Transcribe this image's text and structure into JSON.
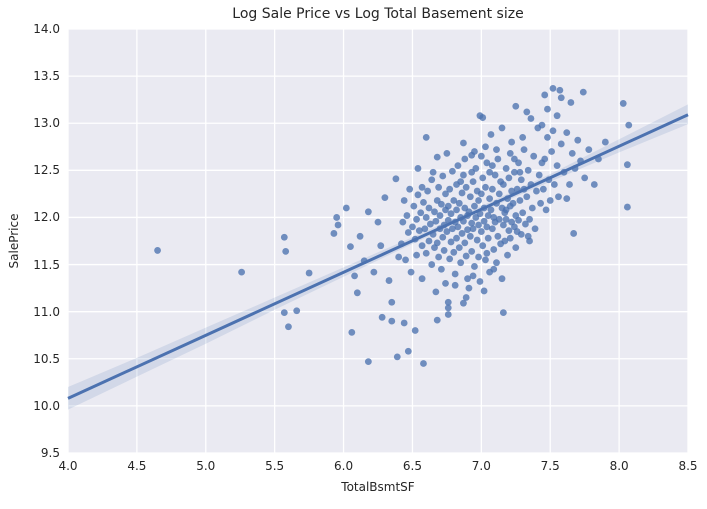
{
  "figure": {
    "title": "Log Sale Price vs Log Total Basement size",
    "x_axis_label": "TotalBsmtSF",
    "y_axis_label": "SalePrice"
  },
  "style": {
    "figure_bg": "#ffffff",
    "axes_bg": "#eaeaf2",
    "grid_color": "#ffffff",
    "point_color": "#4c72b0",
    "point_opacity": 0.78,
    "point_radius": 3.4,
    "line_color": "#4c72b0",
    "line_width": 3,
    "band_color": "#4c72b0",
    "band_opacity": 0.15,
    "text_color": "#262626"
  },
  "chart_data": {
    "type": "scatter",
    "title": "Log Sale Price vs Log Total Basement size",
    "xlabel": "TotalBsmtSF",
    "ylabel": "SalePrice",
    "xlim": [
      4.0,
      8.5
    ],
    "ylim": [
      9.5,
      14.0
    ],
    "x_ticks": [
      "4.0",
      "4.5",
      "5.0",
      "5.5",
      "6.0",
      "6.5",
      "7.0",
      "7.5",
      "8.0",
      "8.5"
    ],
    "y_ticks": [
      "9.5",
      "10.0",
      "10.5",
      "11.0",
      "11.5",
      "12.0",
      "12.5",
      "13.0",
      "13.5",
      "14.0"
    ],
    "grid": true,
    "legend": false,
    "regression_line": {
      "x": [
        4.0,
        8.5
      ],
      "y": [
        10.08,
        13.09
      ],
      "slope": 0.669,
      "intercept": 7.404
    },
    "confidence_band": {
      "x": [
        4.0,
        4.5,
        5.0,
        5.5,
        6.0,
        6.5,
        7.0,
        7.5,
        8.0,
        8.5
      ],
      "upper": [
        10.2,
        10.51,
        10.83,
        11.15,
        11.47,
        11.79,
        12.12,
        12.46,
        12.83,
        13.2
      ],
      "lower": [
        9.96,
        10.31,
        10.66,
        11.02,
        11.37,
        11.72,
        12.06,
        12.38,
        12.69,
        12.99
      ]
    },
    "points": [
      [
        4.65,
        11.65
      ],
      [
        5.26,
        11.42
      ],
      [
        5.57,
        11.79
      ],
      [
        5.58,
        11.64
      ],
      [
        5.75,
        11.41
      ],
      [
        5.57,
        10.99
      ],
      [
        5.66,
        11.01
      ],
      [
        5.6,
        10.84
      ],
      [
        6.18,
        10.47
      ],
      [
        6.39,
        10.52
      ],
      [
        6.47,
        10.58
      ],
      [
        6.58,
        10.45
      ],
      [
        8.03,
        13.21
      ],
      [
        8.07,
        12.98
      ],
      [
        8.06,
        12.56
      ],
      [
        8.06,
        12.11
      ],
      [
        7.67,
        11.83
      ],
      [
        6.67,
        11.21
      ],
      [
        6.76,
        11.1
      ],
      [
        6.76,
        11.04
      ],
      [
        6.87,
        11.09
      ],
      [
        6.76,
        10.97
      ],
      [
        6.68,
        10.91
      ],
      [
        7.16,
        10.99
      ],
      [
        6.6,
        12.85
      ],
      [
        6.68,
        12.64
      ],
      [
        6.75,
        12.68
      ],
      [
        6.87,
        12.79
      ],
      [
        6.93,
        12.66
      ],
      [
        6.54,
        12.52
      ],
      [
        6.65,
        12.48
      ],
      [
        6.38,
        12.41
      ],
      [
        6.57,
        12.32
      ],
      [
        6.99,
        13.08
      ],
      [
        7.57,
        13.35
      ],
      [
        7.46,
        13.3
      ],
      [
        7.52,
        13.37
      ],
      [
        7.74,
        13.33
      ],
      [
        7.58,
        13.27
      ],
      [
        7.01,
        13.06
      ],
      [
        5.93,
        11.83
      ],
      [
        5.96,
        11.92
      ],
      [
        5.95,
        12.0
      ],
      [
        6.02,
        12.1
      ],
      [
        6.05,
        11.69
      ],
      [
        6.08,
        11.38
      ],
      [
        6.12,
        11.8
      ],
      [
        6.15,
        11.54
      ],
      [
        6.1,
        11.2
      ],
      [
        6.22,
        11.42
      ],
      [
        6.27,
        11.7
      ],
      [
        6.25,
        11.95
      ],
      [
        6.3,
        12.21
      ],
      [
        6.18,
        12.06
      ],
      [
        6.35,
        11.1
      ],
      [
        6.28,
        10.94
      ],
      [
        6.33,
        11.33
      ],
      [
        6.4,
        11.58
      ],
      [
        6.06,
        10.78
      ],
      [
        6.52,
        10.8
      ],
      [
        6.35,
        10.9
      ],
      [
        6.44,
        10.88
      ],
      [
        6.42,
        11.72
      ],
      [
        6.43,
        11.95
      ],
      [
        6.44,
        12.18
      ],
      [
        6.45,
        11.55
      ],
      [
        6.46,
        12.02
      ],
      [
        6.47,
        11.84
      ],
      [
        6.48,
        12.3
      ],
      [
        6.49,
        11.42
      ],
      [
        6.5,
        11.9
      ],
      [
        6.51,
        12.12
      ],
      [
        6.52,
        11.77
      ],
      [
        6.53,
        11.98
      ],
      [
        6.53,
        11.6
      ],
      [
        6.54,
        12.24
      ],
      [
        6.55,
        11.86
      ],
      [
        6.56,
        12.05
      ],
      [
        6.57,
        11.7
      ],
      [
        6.57,
        11.35
      ],
      [
        6.58,
        12.16
      ],
      [
        6.59,
        11.88
      ],
      [
        6.6,
        12.0
      ],
      [
        6.6,
        11.62
      ],
      [
        6.61,
        12.28
      ],
      [
        6.62,
        11.75
      ],
      [
        6.62,
        12.1
      ],
      [
        6.63,
        11.93
      ],
      [
        6.64,
        11.5
      ],
      [
        6.64,
        12.4
      ],
      [
        6.65,
        11.82
      ],
      [
        6.66,
        12.06
      ],
      [
        6.66,
        11.68
      ],
      [
        6.67,
        11.96
      ],
      [
        6.68,
        12.18
      ],
      [
        6.68,
        11.73
      ],
      [
        6.69,
        11.58
      ],
      [
        6.69,
        12.32
      ],
      [
        6.7,
        11.88
      ],
      [
        6.7,
        12.02
      ],
      [
        6.71,
        11.45
      ],
      [
        6.71,
        12.14
      ],
      [
        6.72,
        11.79
      ],
      [
        6.72,
        12.44
      ],
      [
        6.73,
        11.92
      ],
      [
        6.73,
        11.65
      ],
      [
        6.74,
        12.08
      ],
      [
        6.74,
        11.3
      ],
      [
        6.74,
        12.25
      ],
      [
        6.75,
        11.85
      ],
      [
        6.76,
        12.12
      ],
      [
        6.76,
        11.97
      ],
      [
        6.77,
        11.56
      ],
      [
        6.77,
        12.3
      ],
      [
        6.78,
        11.74
      ],
      [
        6.78,
        12.04
      ],
      [
        6.79,
        11.88
      ],
      [
        6.79,
        12.49
      ],
      [
        6.8,
        11.63
      ],
      [
        6.8,
        12.18
      ],
      [
        6.81,
        11.95
      ],
      [
        6.81,
        11.4
      ],
      [
        6.82,
        12.08
      ],
      [
        6.82,
        11.78
      ],
      [
        6.82,
        12.35
      ],
      [
        6.83,
        11.9
      ],
      [
        6.84,
        12.15
      ],
      [
        6.84,
        11.68
      ],
      [
        6.85,
        12.0
      ],
      [
        6.85,
        11.52
      ],
      [
        6.86,
        12.26
      ],
      [
        6.86,
        11.83
      ],
      [
        6.87,
        12.45
      ],
      [
        6.87,
        11.96
      ],
      [
        6.88,
        11.73
      ],
      [
        6.88,
        12.1
      ],
      [
        6.89,
        11.59
      ],
      [
        6.89,
        12.32
      ],
      [
        6.9,
        11.87
      ],
      [
        6.9,
        12.02
      ],
      [
        6.9,
        11.35
      ],
      [
        6.83,
        12.55
      ],
      [
        6.88,
        12.62
      ],
      [
        6.91,
        12.06
      ],
      [
        6.92,
        11.8
      ],
      [
        6.92,
        12.22
      ],
      [
        6.93,
        11.94
      ],
      [
        6.93,
        11.64
      ],
      [
        6.94,
        12.38
      ],
      [
        6.94,
        11.88
      ],
      [
        6.95,
        12.12
      ],
      [
        6.95,
        11.48
      ],
      [
        6.96,
        12.0
      ],
      [
        6.96,
        12.52
      ],
      [
        6.97,
        11.76
      ],
      [
        6.97,
        12.28
      ],
      [
        6.98,
        11.92
      ],
      [
        6.98,
        11.58
      ],
      [
        6.91,
        11.25
      ],
      [
        6.95,
        12.7
      ],
      [
        6.98,
        12.18
      ],
      [
        6.99,
        12.04
      ],
      [
        7.0,
        11.85
      ],
      [
        7.0,
        12.25
      ],
      [
        7.01,
        11.7
      ],
      [
        7.01,
        12.42
      ],
      [
        7.02,
        11.96
      ],
      [
        7.02,
        12.1
      ],
      [
        7.03,
        11.55
      ],
      [
        7.03,
        12.32
      ],
      [
        7.04,
        11.9
      ],
      [
        7.04,
        12.58
      ],
      [
        7.05,
        12.02
      ],
      [
        7.05,
        11.78
      ],
      [
        7.06,
        12.2
      ],
      [
        7.06,
        11.42
      ],
      [
        6.99,
        11.32
      ],
      [
        7.03,
        12.75
      ],
      [
        7.06,
        12.48
      ],
      [
        7.07,
        12.08
      ],
      [
        7.08,
        11.88
      ],
      [
        7.08,
        12.3
      ],
      [
        7.09,
        12.0
      ],
      [
        7.09,
        11.66
      ],
      [
        7.1,
        12.45
      ],
      [
        7.1,
        11.95
      ],
      [
        7.11,
        12.15
      ],
      [
        7.11,
        11.52
      ],
      [
        7.12,
        12.62
      ],
      [
        7.12,
        11.8
      ],
      [
        7.13,
        12.25
      ],
      [
        7.13,
        11.98
      ],
      [
        7.14,
        12.38
      ],
      [
        7.14,
        11.72
      ],
      [
        7.07,
        12.88
      ],
      [
        7.15,
        12.1
      ],
      [
        7.16,
        11.92
      ],
      [
        7.16,
        12.35
      ],
      [
        7.17,
        12.05
      ],
      [
        7.17,
        11.75
      ],
      [
        7.18,
        12.52
      ],
      [
        7.18,
        11.98
      ],
      [
        7.19,
        12.2
      ],
      [
        7.19,
        11.6
      ],
      [
        7.2,
        12.42
      ],
      [
        7.2,
        11.86
      ],
      [
        7.21,
        12.12
      ],
      [
        7.21,
        12.68
      ],
      [
        7.22,
        11.95
      ],
      [
        7.22,
        12.28
      ],
      [
        7.23,
        12.15
      ],
      [
        7.24,
        11.9
      ],
      [
        7.24,
        12.48
      ],
      [
        7.25,
        12.02
      ],
      [
        7.25,
        11.68
      ],
      [
        7.26,
        12.3
      ],
      [
        7.27,
        12.58
      ],
      [
        7.27,
        11.97
      ],
      [
        7.28,
        12.18
      ],
      [
        7.29,
        11.82
      ],
      [
        7.29,
        12.4
      ],
      [
        7.3,
        12.05
      ],
      [
        7.31,
        12.72
      ],
      [
        7.32,
        11.93
      ],
      [
        7.33,
        12.22
      ],
      [
        7.34,
        12.5
      ],
      [
        7.35,
        11.98
      ],
      [
        7.36,
        12.35
      ],
      [
        7.37,
        12.1
      ],
      [
        7.38,
        12.65
      ],
      [
        7.39,
        11.88
      ],
      [
        7.4,
        12.28
      ],
      [
        7.41,
        12.95
      ],
      [
        7.42,
        12.45
      ],
      [
        7.43,
        12.15
      ],
      [
        7.44,
        12.58
      ],
      [
        7.35,
        11.75
      ],
      [
        7.45,
        12.3
      ],
      [
        7.46,
        12.62
      ],
      [
        7.47,
        12.08
      ],
      [
        7.48,
        12.85
      ],
      [
        7.49,
        12.4
      ],
      [
        7.5,
        12.18
      ],
      [
        7.51,
        12.7
      ],
      [
        7.52,
        12.92
      ],
      [
        7.53,
        12.35
      ],
      [
        7.55,
        12.55
      ],
      [
        7.56,
        12.22
      ],
      [
        7.58,
        12.78
      ],
      [
        7.6,
        12.48
      ],
      [
        7.62,
        12.9
      ],
      [
        7.64,
        12.35
      ],
      [
        7.66,
        12.68
      ],
      [
        7.68,
        12.52
      ],
      [
        7.7,
        12.82
      ],
      [
        7.72,
        12.6
      ],
      [
        7.75,
        12.42
      ],
      [
        7.78,
        12.72
      ],
      [
        7.62,
        12.2
      ],
      [
        7.36,
        13.05
      ],
      [
        7.44,
        12.98
      ],
      [
        7.3,
        12.85
      ],
      [
        7.22,
        12.8
      ],
      [
        7.15,
        12.95
      ],
      [
        7.48,
        13.15
      ],
      [
        7.55,
        13.08
      ],
      [
        7.65,
        13.22
      ],
      [
        7.25,
        13.18
      ],
      [
        7.33,
        13.12
      ],
      [
        7.85,
        12.62
      ],
      [
        7.9,
        12.8
      ],
      [
        7.82,
        12.35
      ],
      [
        6.85,
        12.38
      ],
      [
        6.89,
        11.15
      ],
      [
        6.93,
        12.48
      ],
      [
        7.0,
        12.65
      ],
      [
        7.04,
        11.62
      ],
      [
        7.08,
        12.55
      ],
      [
        7.11,
        12.72
      ],
      [
        7.15,
        11.35
      ],
      [
        7.18,
        12.08
      ],
      [
        7.21,
        11.78
      ],
      [
        7.24,
        12.62
      ],
      [
        7.26,
        11.85
      ],
      [
        7.28,
        12.48
      ],
      [
        7.31,
        12.3
      ],
      [
        7.34,
        11.8
      ],
      [
        6.81,
        11.28
      ],
      [
        6.94,
        11.38
      ],
      [
        7.02,
        11.22
      ],
      [
        7.09,
        11.45
      ]
    ]
  }
}
